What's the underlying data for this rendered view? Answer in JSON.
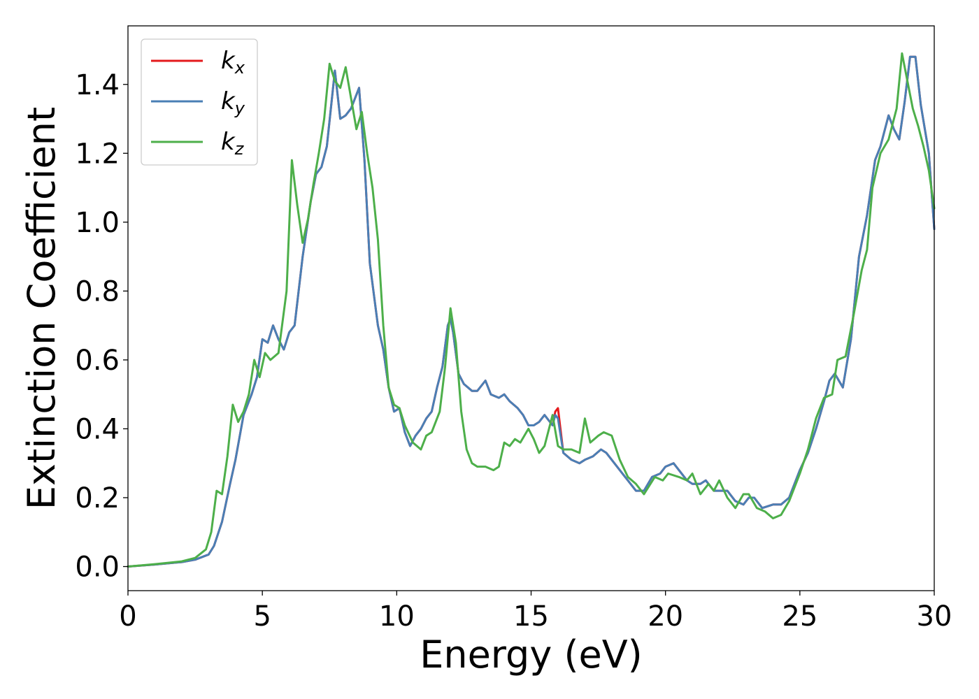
{
  "chart_data": {
    "type": "line",
    "title": "",
    "xlabel": "Energy (eV)",
    "ylabel": "Extinction Coefficient",
    "xlim": [
      0,
      30
    ],
    "ylim": [
      -0.07,
      1.57
    ],
    "xticks": [
      0,
      5,
      10,
      15,
      20,
      25,
      30
    ],
    "xtick_labels": [
      "0",
      "5",
      "10",
      "15",
      "20",
      "25",
      "30"
    ],
    "yticks": [
      0.0,
      0.2,
      0.4,
      0.6,
      0.8,
      1.0,
      1.2,
      1.4
    ],
    "ytick_labels": [
      "0.0",
      "0.2",
      "0.4",
      "0.6",
      "0.8",
      "1.0",
      "1.2",
      "1.4"
    ],
    "grid": false,
    "legend_position": "top-left",
    "series": [
      {
        "name": "kx",
        "label_main": "k",
        "label_sub": "x",
        "color": "#e41a1c",
        "x": [
          0,
          1,
          2,
          2.5,
          3.0,
          3.2,
          3.5,
          3.8,
          4.0,
          4.3,
          4.6,
          4.8,
          5.0,
          5.2,
          5.4,
          5.6,
          5.8,
          6.0,
          6.2,
          6.5,
          6.8,
          7.0,
          7.2,
          7.4,
          7.7,
          7.9,
          8.1,
          8.3,
          8.6,
          8.8,
          9.0,
          9.3,
          9.5,
          9.7,
          9.9,
          10.1,
          10.3,
          10.5,
          10.7,
          10.9,
          11.1,
          11.3,
          11.5,
          11.7,
          11.9,
          12.0,
          12.1,
          12.3,
          12.5,
          12.8,
          13.0,
          13.3,
          13.5,
          13.8,
          14.0,
          14.2,
          14.5,
          14.7,
          14.9,
          15.1,
          15.3,
          15.5,
          15.8,
          15.9,
          16.0,
          16.2,
          16.5,
          16.8,
          17.0,
          17.3,
          17.6,
          17.8,
          18.0,
          18.3,
          18.6,
          18.9,
          19.2,
          19.5,
          19.8,
          20.0,
          20.3,
          20.5,
          20.8,
          21.0,
          21.3,
          21.5,
          21.8,
          22.0,
          22.3,
          22.6,
          22.9,
          23.1,
          23.3,
          23.6,
          24.0,
          24.3,
          24.6,
          25.0,
          25.3,
          25.6,
          25.9,
          26.1,
          26.3,
          26.6,
          26.9,
          27.2,
          27.5,
          27.8,
          28.0,
          28.3,
          28.5,
          28.7,
          28.9,
          29.1,
          29.3,
          29.5,
          29.8,
          30.0
        ],
        "y": [
          0.0,
          0.006,
          0.013,
          0.02,
          0.035,
          0.06,
          0.13,
          0.24,
          0.31,
          0.44,
          0.5,
          0.55,
          0.66,
          0.65,
          0.7,
          0.66,
          0.63,
          0.68,
          0.7,
          0.9,
          1.06,
          1.14,
          1.16,
          1.22,
          1.44,
          1.3,
          1.31,
          1.33,
          1.39,
          1.18,
          0.88,
          0.7,
          0.63,
          0.52,
          0.45,
          0.46,
          0.39,
          0.35,
          0.38,
          0.4,
          0.43,
          0.45,
          0.52,
          0.58,
          0.7,
          0.72,
          0.68,
          0.56,
          0.53,
          0.51,
          0.51,
          0.54,
          0.5,
          0.49,
          0.5,
          0.48,
          0.46,
          0.44,
          0.41,
          0.41,
          0.42,
          0.44,
          0.41,
          0.45,
          0.46,
          0.33,
          0.31,
          0.3,
          0.31,
          0.32,
          0.34,
          0.33,
          0.31,
          0.28,
          0.25,
          0.22,
          0.22,
          0.26,
          0.27,
          0.29,
          0.3,
          0.28,
          0.25,
          0.24,
          0.24,
          0.25,
          0.22,
          0.22,
          0.22,
          0.19,
          0.18,
          0.2,
          0.2,
          0.17,
          0.18,
          0.18,
          0.2,
          0.28,
          0.33,
          0.4,
          0.48,
          0.54,
          0.56,
          0.52,
          0.66,
          0.9,
          1.02,
          1.18,
          1.22,
          1.31,
          1.27,
          1.24,
          1.35,
          1.48,
          1.48,
          1.34,
          1.2,
          0.98
        ]
      },
      {
        "name": "ky",
        "label_main": "k",
        "label_sub": "y",
        "color": "#4a7fb5",
        "x": [
          0,
          1,
          2,
          2.5,
          3.0,
          3.2,
          3.5,
          3.8,
          4.0,
          4.3,
          4.6,
          4.8,
          5.0,
          5.2,
          5.4,
          5.6,
          5.8,
          6.0,
          6.2,
          6.5,
          6.8,
          7.0,
          7.2,
          7.4,
          7.7,
          7.9,
          8.1,
          8.3,
          8.6,
          8.8,
          9.0,
          9.3,
          9.5,
          9.7,
          9.9,
          10.1,
          10.3,
          10.5,
          10.7,
          10.9,
          11.1,
          11.3,
          11.5,
          11.7,
          11.9,
          12.0,
          12.1,
          12.3,
          12.5,
          12.8,
          13.0,
          13.3,
          13.5,
          13.8,
          14.0,
          14.2,
          14.5,
          14.7,
          14.9,
          15.1,
          15.3,
          15.5,
          15.8,
          15.9,
          16.0,
          16.2,
          16.5,
          16.8,
          17.0,
          17.3,
          17.6,
          17.8,
          18.0,
          18.3,
          18.6,
          18.9,
          19.2,
          19.5,
          19.8,
          20.0,
          20.3,
          20.5,
          20.8,
          21.0,
          21.3,
          21.5,
          21.8,
          22.0,
          22.3,
          22.6,
          22.9,
          23.1,
          23.3,
          23.6,
          24.0,
          24.3,
          24.6,
          25.0,
          25.3,
          25.6,
          25.9,
          26.1,
          26.3,
          26.6,
          26.9,
          27.2,
          27.5,
          27.8,
          28.0,
          28.3,
          28.5,
          28.7,
          28.9,
          29.1,
          29.3,
          29.5,
          29.8,
          30.0
        ],
        "y": [
          0.0,
          0.006,
          0.013,
          0.02,
          0.035,
          0.06,
          0.13,
          0.24,
          0.31,
          0.44,
          0.5,
          0.55,
          0.66,
          0.65,
          0.7,
          0.66,
          0.63,
          0.68,
          0.7,
          0.9,
          1.06,
          1.14,
          1.16,
          1.22,
          1.44,
          1.3,
          1.31,
          1.33,
          1.39,
          1.18,
          0.88,
          0.7,
          0.63,
          0.52,
          0.45,
          0.46,
          0.39,
          0.35,
          0.38,
          0.4,
          0.43,
          0.45,
          0.52,
          0.58,
          0.7,
          0.72,
          0.68,
          0.56,
          0.53,
          0.51,
          0.51,
          0.54,
          0.5,
          0.49,
          0.5,
          0.48,
          0.46,
          0.44,
          0.41,
          0.41,
          0.42,
          0.44,
          0.41,
          0.44,
          0.43,
          0.33,
          0.31,
          0.3,
          0.31,
          0.32,
          0.34,
          0.33,
          0.31,
          0.28,
          0.25,
          0.22,
          0.22,
          0.26,
          0.27,
          0.29,
          0.3,
          0.28,
          0.25,
          0.24,
          0.24,
          0.25,
          0.22,
          0.22,
          0.22,
          0.19,
          0.18,
          0.2,
          0.2,
          0.17,
          0.18,
          0.18,
          0.2,
          0.28,
          0.33,
          0.4,
          0.48,
          0.54,
          0.56,
          0.52,
          0.66,
          0.9,
          1.02,
          1.18,
          1.22,
          1.31,
          1.27,
          1.24,
          1.35,
          1.48,
          1.48,
          1.34,
          1.2,
          0.98
        ]
      },
      {
        "name": "kz",
        "label_main": "k",
        "label_sub": "z",
        "color": "#4daf4a",
        "x": [
          0,
          1,
          2,
          2.5,
          2.9,
          3.1,
          3.3,
          3.5,
          3.7,
          3.9,
          4.1,
          4.3,
          4.5,
          4.7,
          4.9,
          5.1,
          5.3,
          5.6,
          5.9,
          6.1,
          6.3,
          6.5,
          6.7,
          6.9,
          7.1,
          7.3,
          7.5,
          7.7,
          7.9,
          8.1,
          8.3,
          8.5,
          8.7,
          8.9,
          9.1,
          9.3,
          9.5,
          9.7,
          9.9,
          10.1,
          10.3,
          10.6,
          10.9,
          11.1,
          11.3,
          11.6,
          11.8,
          12.0,
          12.2,
          12.4,
          12.6,
          12.8,
          13.0,
          13.3,
          13.6,
          13.8,
          14.0,
          14.2,
          14.4,
          14.6,
          14.9,
          15.1,
          15.3,
          15.5,
          15.8,
          16.0,
          16.2,
          16.5,
          16.8,
          17.0,
          17.2,
          17.5,
          17.7,
          18.0,
          18.3,
          18.6,
          18.9,
          19.2,
          19.6,
          19.9,
          20.1,
          20.5,
          20.8,
          21.0,
          21.3,
          21.6,
          21.8,
          22.0,
          22.3,
          22.6,
          22.9,
          23.1,
          23.4,
          23.7,
          24.0,
          24.3,
          24.6,
          25.0,
          25.3,
          25.6,
          25.9,
          26.2,
          26.4,
          26.7,
          27.0,
          27.3,
          27.5,
          27.7,
          28.0,
          28.3,
          28.6,
          28.8,
          29.0,
          29.2,
          29.4,
          29.6,
          29.8,
          30.0
        ],
        "y": [
          0.0,
          0.007,
          0.015,
          0.025,
          0.05,
          0.1,
          0.22,
          0.21,
          0.32,
          0.47,
          0.42,
          0.45,
          0.5,
          0.6,
          0.55,
          0.62,
          0.6,
          0.62,
          0.8,
          1.18,
          1.05,
          0.94,
          1.01,
          1.11,
          1.2,
          1.3,
          1.46,
          1.41,
          1.39,
          1.45,
          1.36,
          1.27,
          1.32,
          1.2,
          1.1,
          0.95,
          0.7,
          0.52,
          0.47,
          0.46,
          0.41,
          0.36,
          0.34,
          0.38,
          0.39,
          0.45,
          0.58,
          0.75,
          0.65,
          0.45,
          0.34,
          0.3,
          0.29,
          0.29,
          0.28,
          0.29,
          0.36,
          0.35,
          0.37,
          0.36,
          0.4,
          0.37,
          0.33,
          0.35,
          0.44,
          0.35,
          0.34,
          0.34,
          0.33,
          0.43,
          0.36,
          0.38,
          0.39,
          0.38,
          0.31,
          0.26,
          0.24,
          0.21,
          0.26,
          0.25,
          0.27,
          0.26,
          0.25,
          0.27,
          0.21,
          0.24,
          0.22,
          0.25,
          0.2,
          0.17,
          0.21,
          0.21,
          0.17,
          0.16,
          0.14,
          0.15,
          0.19,
          0.27,
          0.34,
          0.43,
          0.49,
          0.5,
          0.6,
          0.61,
          0.73,
          0.86,
          0.92,
          1.1,
          1.2,
          1.24,
          1.33,
          1.49,
          1.41,
          1.33,
          1.28,
          1.22,
          1.15,
          1.04
        ]
      }
    ]
  }
}
